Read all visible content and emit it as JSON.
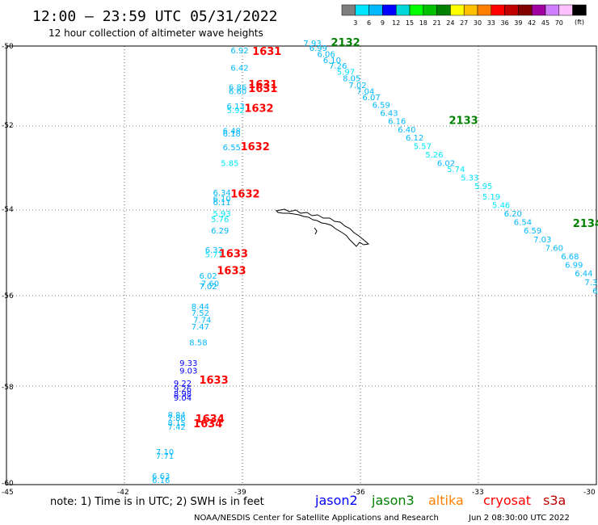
{
  "header": {
    "title": "12:00 — 23:59 UTC 05/31/2022",
    "subtitle": "12 hour collection of altimeter wave heights"
  },
  "colorbar": {
    "colors": [
      "#7f7f7f",
      "#00e5ff",
      "#00b8ff",
      "#0000ff",
      "#00d7d7",
      "#00ff00",
      "#00c000",
      "#008000",
      "#ffff00",
      "#ffc000",
      "#ff8000",
      "#ff0000",
      "#c00000",
      "#800000",
      "#a000a0",
      "#d080ff",
      "#ffc0ff",
      "#000000"
    ],
    "labels": [
      "3",
      "6",
      "9",
      "12",
      "15",
      "18",
      "21",
      "24",
      "27",
      "30",
      "33",
      "36",
      "39",
      "42",
      "45",
      "70"
    ],
    "unit": "(ft)"
  },
  "axes": {
    "lat_ticks": [
      "-50",
      "-52",
      "-54",
      "-56",
      "-58",
      "-60"
    ],
    "lon_ticks": [
      "-45",
      "-42",
      "-39",
      "-36",
      "-33",
      "-30"
    ]
  },
  "wave_labels": [
    {
      "text": "6.92",
      "lon": -39.3,
      "lat": -50.18,
      "color": "#00b8ff"
    },
    {
      "text": "6.42",
      "lon": -39.3,
      "lat": -50.62,
      "color": "#00b8ff"
    },
    {
      "text": "6.86",
      "lon": -39.35,
      "lat": -51.1,
      "color": "#00b8ff"
    },
    {
      "text": "6.60",
      "lon": -39.35,
      "lat": -51.2,
      "color": "#00b8ff"
    },
    {
      "text": "6.13",
      "lon": -39.4,
      "lat": -51.58,
      "color": "#00b8ff"
    },
    {
      "text": "5.92",
      "lon": -39.4,
      "lat": -51.68,
      "color": "#00e5ff"
    },
    {
      "text": "6.48",
      "lon": -39.5,
      "lat": -52.18,
      "color": "#00b8ff"
    },
    {
      "text": "6.18",
      "lon": -39.5,
      "lat": -52.25,
      "color": "#00b8ff"
    },
    {
      "text": "6.55",
      "lon": -39.5,
      "lat": -52.58,
      "color": "#00b8ff"
    },
    {
      "text": "5.85",
      "lon": -39.55,
      "lat": -52.95,
      "color": "#00e5ff"
    },
    {
      "text": "6.34",
      "lon": -39.75,
      "lat": -53.65,
      "color": "#00b8ff"
    },
    {
      "text": "6.10",
      "lon": -39.75,
      "lat": -53.8,
      "color": "#00b8ff"
    },
    {
      "text": "6.11",
      "lon": -39.75,
      "lat": -53.88,
      "color": "#00b8ff"
    },
    {
      "text": "5.93",
      "lon": -39.75,
      "lat": -54.15,
      "color": "#00e5ff"
    },
    {
      "text": "5.76",
      "lon": -39.8,
      "lat": -54.28,
      "color": "#00e5ff"
    },
    {
      "text": "6.29",
      "lon": -39.8,
      "lat": -54.55,
      "color": "#00b8ff"
    },
    {
      "text": "6.32",
      "lon": -39.95,
      "lat": -55.0,
      "color": "#00b8ff"
    },
    {
      "text": "5.71",
      "lon": -39.95,
      "lat": -55.1,
      "color": "#00e5ff"
    },
    {
      "text": "6.02",
      "lon": -40.1,
      "lat": -55.6,
      "color": "#00b8ff"
    },
    {
      "text": "7.60",
      "lon": -40.05,
      "lat": -55.78,
      "color": "#00b8ff"
    },
    {
      "text": "7.02",
      "lon": -40.1,
      "lat": -55.85,
      "color": "#00b8ff"
    },
    {
      "text": "8.44",
      "lon": -40.3,
      "lat": -56.3,
      "color": "#00b8ff"
    },
    {
      "text": "7.52",
      "lon": -40.3,
      "lat": -56.45,
      "color": "#00b8ff"
    },
    {
      "text": "7.74",
      "lon": -40.25,
      "lat": -56.6,
      "color": "#00b8ff"
    },
    {
      "text": "7.47",
      "lon": -40.3,
      "lat": -56.75,
      "color": "#00b8ff"
    },
    {
      "text": "8.58",
      "lon": -40.35,
      "lat": -57.1,
      "color": "#00b8ff"
    },
    {
      "text": "9.33",
      "lon": -40.6,
      "lat": -57.55,
      "color": "#0000ff"
    },
    {
      "text": "9.03",
      "lon": -40.6,
      "lat": -57.72,
      "color": "#0000ff"
    },
    {
      "text": "9.22",
      "lon": -40.75,
      "lat": -58.0,
      "color": "#0000ff"
    },
    {
      "text": "9.26",
      "lon": -40.75,
      "lat": -58.12,
      "color": "#0000ff"
    },
    {
      "text": "8.98",
      "lon": -40.75,
      "lat": -58.22,
      "color": "#0000ff"
    },
    {
      "text": "9.04",
      "lon": -40.75,
      "lat": -58.3,
      "color": "#0000ff"
    },
    {
      "text": "8.84",
      "lon": -40.9,
      "lat": -58.65,
      "color": "#00b8ff"
    },
    {
      "text": "7.86",
      "lon": -40.9,
      "lat": -58.72,
      "color": "#00b8ff"
    },
    {
      "text": "8.15",
      "lon": -40.9,
      "lat": -58.82,
      "color": "#00b8ff"
    },
    {
      "text": "7.42",
      "lon": -40.9,
      "lat": -58.9,
      "color": "#00b8ff"
    },
    {
      "text": "7.10",
      "lon": -41.2,
      "lat": -59.42,
      "color": "#00b8ff"
    },
    {
      "text": "7.71",
      "lon": -41.2,
      "lat": -59.5,
      "color": "#00b8ff"
    },
    {
      "text": "6.63",
      "lon": -41.3,
      "lat": -59.92,
      "color": "#00b8ff"
    },
    {
      "text": "6.16",
      "lon": -41.3,
      "lat": -60.0,
      "color": "#00b8ff"
    },
    {
      "text": "7.93",
      "lon": -37.45,
      "lat": -50.0,
      "color": "#00b8ff"
    },
    {
      "text": "6.99",
      "lon": -37.3,
      "lat": -50.12,
      "color": "#00b8ff"
    },
    {
      "text": "6.06",
      "lon": -37.1,
      "lat": -50.27,
      "color": "#00b8ff"
    },
    {
      "text": "6.10",
      "lon": -36.95,
      "lat": -50.42,
      "color": "#00b8ff"
    },
    {
      "text": "7.26",
      "lon": -36.8,
      "lat": -50.57,
      "color": "#00b8ff"
    },
    {
      "text": "5.97",
      "lon": -36.6,
      "lat": -50.72,
      "color": "#00e5ff"
    },
    {
      "text": "8.05",
      "lon": -36.45,
      "lat": -50.88,
      "color": "#00b8ff"
    },
    {
      "text": "7.02",
      "lon": -36.3,
      "lat": -51.05,
      "color": "#00b8ff"
    },
    {
      "text": "7.04",
      "lon": -36.1,
      "lat": -51.2,
      "color": "#00b8ff"
    },
    {
      "text": "6.07",
      "lon": -35.95,
      "lat": -51.35,
      "color": "#00b8ff"
    },
    {
      "text": "6.59",
      "lon": -35.7,
      "lat": -51.55,
      "color": "#00b8ff"
    },
    {
      "text": "6.43",
      "lon": -35.5,
      "lat": -51.75,
      "color": "#00b8ff"
    },
    {
      "text": "6.16",
      "lon": -35.3,
      "lat": -51.95,
      "color": "#00b8ff"
    },
    {
      "text": "6.40",
      "lon": -35.05,
      "lat": -52.15,
      "color": "#00b8ff"
    },
    {
      "text": "6.12",
      "lon": -34.85,
      "lat": -52.35,
      "color": "#00b8ff"
    },
    {
      "text": "5.57",
      "lon": -34.65,
      "lat": -52.55,
      "color": "#00e5ff"
    },
    {
      "text": "5.26",
      "lon": -34.35,
      "lat": -52.75,
      "color": "#00e5ff"
    },
    {
      "text": "6.02",
      "lon": -34.05,
      "lat": -52.95,
      "color": "#00b8ff"
    },
    {
      "text": "5.74",
      "lon": -33.8,
      "lat": -53.1,
      "color": "#00e5ff"
    },
    {
      "text": "5.33",
      "lon": -33.45,
      "lat": -53.3,
      "color": "#00e5ff"
    },
    {
      "text": "5.95",
      "lon": -33.1,
      "lat": -53.5,
      "color": "#00e5ff"
    },
    {
      "text": "5.19",
      "lon": -32.9,
      "lat": -53.75,
      "color": "#00e5ff"
    },
    {
      "text": "5.46",
      "lon": -32.65,
      "lat": -53.95,
      "color": "#00e5ff"
    },
    {
      "text": "6.20",
      "lon": -32.35,
      "lat": -54.15,
      "color": "#00b8ff"
    },
    {
      "text": "6.54",
      "lon": -32.1,
      "lat": -54.35,
      "color": "#00b8ff"
    },
    {
      "text": "6.59",
      "lon": -31.85,
      "lat": -54.55,
      "color": "#00b8ff"
    },
    {
      "text": "7.03",
      "lon": -31.6,
      "lat": -54.75,
      "color": "#00b8ff"
    },
    {
      "text": "7.60",
      "lon": -31.3,
      "lat": -54.95,
      "color": "#00b8ff"
    },
    {
      "text": "6.68",
      "lon": -30.9,
      "lat": -55.15,
      "color": "#00b8ff"
    },
    {
      "text": "6.99",
      "lon": -30.8,
      "lat": -55.35,
      "color": "#00b8ff"
    },
    {
      "text": "6.44",
      "lon": -30.55,
      "lat": -55.55,
      "color": "#00b8ff"
    },
    {
      "text": "7.3",
      "lon": -30.3,
      "lat": -55.75,
      "color": "#00b8ff"
    },
    {
      "text": "6",
      "lon": -30.1,
      "lat": -55.95,
      "color": "#00b8ff"
    }
  ],
  "time_labels": [
    {
      "text": "1631",
      "lon": -38.75,
      "lat": -50.22,
      "color": "#ff0000"
    },
    {
      "text": "1631",
      "lon": -38.85,
      "lat": -51.05,
      "color": "#ff0000"
    },
    {
      "text": "1631",
      "lon": -38.85,
      "lat": -51.15,
      "color": "#ff0000"
    },
    {
      "text": "1632",
      "lon": -38.95,
      "lat": -51.65,
      "color": "#ff0000"
    },
    {
      "text": "1632",
      "lon": -39.05,
      "lat": -52.58,
      "color": "#ff0000"
    },
    {
      "text": "1632",
      "lon": -39.3,
      "lat": -53.7,
      "color": "#ff0000"
    },
    {
      "text": "1633",
      "lon": -39.6,
      "lat": -55.1,
      "color": "#ff0000"
    },
    {
      "text": "1633",
      "lon": -39.65,
      "lat": -55.5,
      "color": "#ff0000"
    },
    {
      "text": "1633",
      "lon": -40.1,
      "lat": -57.95,
      "color": "#ff0000"
    },
    {
      "text": "1634",
      "lon": -40.2,
      "lat": -58.75,
      "color": "#ff0000"
    },
    {
      "text": "1634",
      "lon": -40.25,
      "lat": -58.85,
      "color": "#ff0000"
    },
    {
      "text": "2132",
      "lon": -36.75,
      "lat": -50.0,
      "color": "#008000"
    },
    {
      "text": "2133",
      "lon": -33.75,
      "lat": -51.95,
      "color": "#008000"
    },
    {
      "text": "2134",
      "lon": -30.6,
      "lat": -54.4,
      "color": "#008000"
    }
  ],
  "notes": {
    "text": "note:  1) Time is in UTC;  2) SWH is in feet",
    "satellites": [
      {
        "name": "jason2",
        "color": "#0000ff"
      },
      {
        "name": "jason3",
        "color": "#008000"
      },
      {
        "name": "altika",
        "color": "#ff8000"
      },
      {
        "name": "cryosat",
        "color": "#ff0000"
      },
      {
        "name": "s3a",
        "color": "#c00000"
      }
    ]
  },
  "credit": {
    "agency": "NOAA/NESDIS Center for Satellite Applications and Research",
    "timestamp": "Jun  2 08:30:00 UTC 2022"
  }
}
